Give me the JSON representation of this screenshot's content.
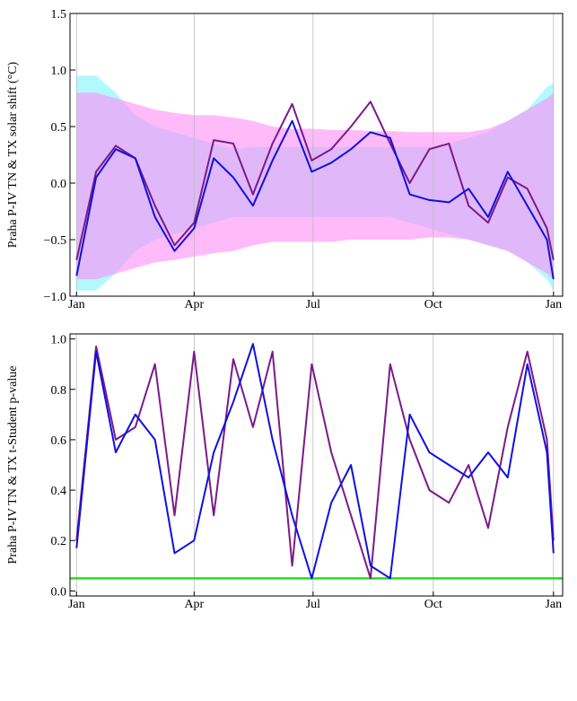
{
  "chart_data": [
    {
      "type": "band-line",
      "y_label": "Praha P-IV TN & TX solar shift (°C)",
      "x": [
        0,
        15,
        30,
        45,
        60,
        75,
        90,
        105,
        120,
        135,
        150,
        165,
        180,
        195,
        210,
        225,
        240,
        255,
        270,
        285,
        300,
        315,
        330,
        345,
        360,
        365
      ],
      "xlim": [
        -5,
        372
      ],
      "xticks": [
        {
          "value": 0,
          "label": "Jan"
        },
        {
          "value": 90,
          "label": "Apr"
        },
        {
          "value": 181,
          "label": "Jul"
        },
        {
          "value": 273,
          "label": "Oct"
        },
        {
          "value": 365,
          "label": "Jan"
        }
      ],
      "ylim": [
        -1,
        1.5
      ],
      "yticks": [
        {
          "value": -1,
          "label": "−1.0"
        },
        {
          "value": -0.5,
          "label": "−0.5"
        },
        {
          "value": 0,
          "label": "0.0"
        },
        0.5,
        {
          "value": 1,
          "label": "1.0"
        },
        {
          "value": 1.5,
          "label": "1.5"
        }
      ],
      "grid": true,
      "bands": [
        {
          "color": "#7ff5ff",
          "upper": [
            0.95,
            0.95,
            0.8,
            0.6,
            0.5,
            0.45,
            0.4,
            0.35,
            0.3,
            0.32,
            0.32,
            0.32,
            0.32,
            0.32,
            0.32,
            0.32,
            0.32,
            0.32,
            0.32,
            0.35,
            0.4,
            0.45,
            0.55,
            0.65,
            0.85,
            0.88
          ],
          "lower": [
            -0.95,
            -0.95,
            -0.8,
            -0.6,
            -0.5,
            -0.45,
            -0.4,
            -0.35,
            -0.3,
            -0.3,
            -0.3,
            -0.3,
            -0.3,
            -0.3,
            -0.3,
            -0.3,
            -0.3,
            -0.35,
            -0.4,
            -0.45,
            -0.5,
            -0.55,
            -0.6,
            -0.7,
            -0.85,
            -0.95
          ]
        },
        {
          "color": "#ff8cf5",
          "upper": [
            0.8,
            0.8,
            0.75,
            0.7,
            0.65,
            0.62,
            0.6,
            0.6,
            0.58,
            0.55,
            0.5,
            0.48,
            0.48,
            0.47,
            0.47,
            0.46,
            0.46,
            0.45,
            0.45,
            0.45,
            0.45,
            0.48,
            0.55,
            0.65,
            0.75,
            0.8
          ],
          "lower": [
            -0.85,
            -0.85,
            -0.8,
            -0.75,
            -0.7,
            -0.68,
            -0.65,
            -0.62,
            -0.6,
            -0.55,
            -0.52,
            -0.52,
            -0.52,
            -0.52,
            -0.5,
            -0.5,
            -0.5,
            -0.5,
            -0.48,
            -0.48,
            -0.5,
            -0.55,
            -0.6,
            -0.7,
            -0.8,
            -0.85
          ]
        }
      ],
      "series": [
        {
          "color": "#7a1a8a",
          "values": [
            -0.68,
            0.1,
            0.33,
            0.22,
            -0.2,
            -0.55,
            -0.35,
            0.38,
            0.35,
            -0.1,
            0.35,
            0.7,
            0.2,
            0.3,
            0.5,
            0.72,
            0.35,
            0.0,
            0.3,
            0.35,
            -0.2,
            -0.35,
            0.05,
            -0.05,
            -0.4,
            -0.68
          ]
        },
        {
          "color": "#1010e0",
          "values": [
            -0.82,
            0.05,
            0.3,
            0.22,
            -0.3,
            -0.6,
            -0.4,
            0.22,
            0.05,
            -0.2,
            0.2,
            0.55,
            0.1,
            0.18,
            0.3,
            0.45,
            0.4,
            -0.1,
            -0.15,
            -0.17,
            -0.05,
            -0.3,
            0.1,
            -0.2,
            -0.5,
            -0.85
          ]
        }
      ]
    },
    {
      "type": "line",
      "y_label": "Praha P-IV TN & TX t-Student p-value",
      "x": [
        0,
        15,
        30,
        45,
        60,
        75,
        90,
        105,
        120,
        135,
        150,
        165,
        180,
        195,
        210,
        225,
        240,
        255,
        270,
        285,
        300,
        315,
        330,
        345,
        360,
        365
      ],
      "xlim": [
        -5,
        372
      ],
      "xticks": [
        {
          "value": 0,
          "label": "Jan"
        },
        {
          "value": 90,
          "label": "Apr"
        },
        {
          "value": 181,
          "label": "Jul"
        },
        {
          "value": 273,
          "label": "Oct"
        },
        {
          "value": 365,
          "label": "Jan"
        }
      ],
      "ylim": [
        -0.02,
        1.02
      ],
      "yticks": [
        {
          "value": 0,
          "label": "0.0"
        },
        0.2,
        0.4,
        0.6,
        0.8,
        {
          "value": 1,
          "label": "1.0"
        }
      ],
      "grid": true,
      "reference_line": {
        "value": 0.05,
        "color": "#22dd22"
      },
      "series": [
        {
          "color": "#7a1a8a",
          "values": [
            0.2,
            0.97,
            0.6,
            0.65,
            0.9,
            0.3,
            0.95,
            0.3,
            0.92,
            0.65,
            0.95,
            0.1,
            0.9,
            0.55,
            0.3,
            0.05,
            0.9,
            0.6,
            0.4,
            0.35,
            0.5,
            0.25,
            0.65,
            0.95,
            0.6,
            0.2
          ]
        },
        {
          "color": "#1010e0",
          "values": [
            0.17,
            0.95,
            0.55,
            0.7,
            0.6,
            0.15,
            0.2,
            0.55,
            0.75,
            0.98,
            0.6,
            0.3,
            0.05,
            0.35,
            0.5,
            0.1,
            0.05,
            0.7,
            0.55,
            0.5,
            0.45,
            0.55,
            0.45,
            0.9,
            0.55,
            0.15
          ]
        }
      ]
    }
  ]
}
